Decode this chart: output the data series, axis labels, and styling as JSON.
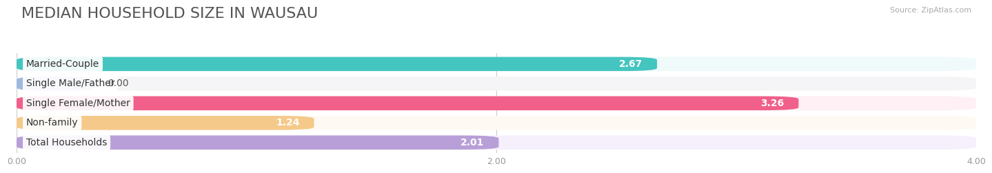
{
  "title": "MEDIAN HOUSEHOLD SIZE IN WAUSAU",
  "source": "Source: ZipAtlas.com",
  "categories": [
    "Married-Couple",
    "Single Male/Father",
    "Single Female/Mother",
    "Non-family",
    "Total Households"
  ],
  "values": [
    2.67,
    0.0,
    3.26,
    1.24,
    2.01
  ],
  "bar_colors": [
    "#45c5c0",
    "#a0b8de",
    "#f0608a",
    "#f5c98a",
    "#b89fd8"
  ],
  "bg_colors": [
    "#ebebeb",
    "#ebebeb",
    "#ebebeb",
    "#ebebeb",
    "#ebebeb"
  ],
  "row_bg_colors": [
    "#f0fafa",
    "#f5f5f8",
    "#fef0f5",
    "#fefaf3",
    "#f5f0fc"
  ],
  "xlim": [
    0,
    4.0
  ],
  "xtick_labels": [
    "0.00",
    "2.00",
    "4.00"
  ],
  "xtick_values": [
    0.0,
    2.0,
    4.0
  ],
  "title_fontsize": 16,
  "label_fontsize": 10,
  "value_fontsize": 10,
  "background_color": "#ffffff",
  "stub_value": 0.32
}
